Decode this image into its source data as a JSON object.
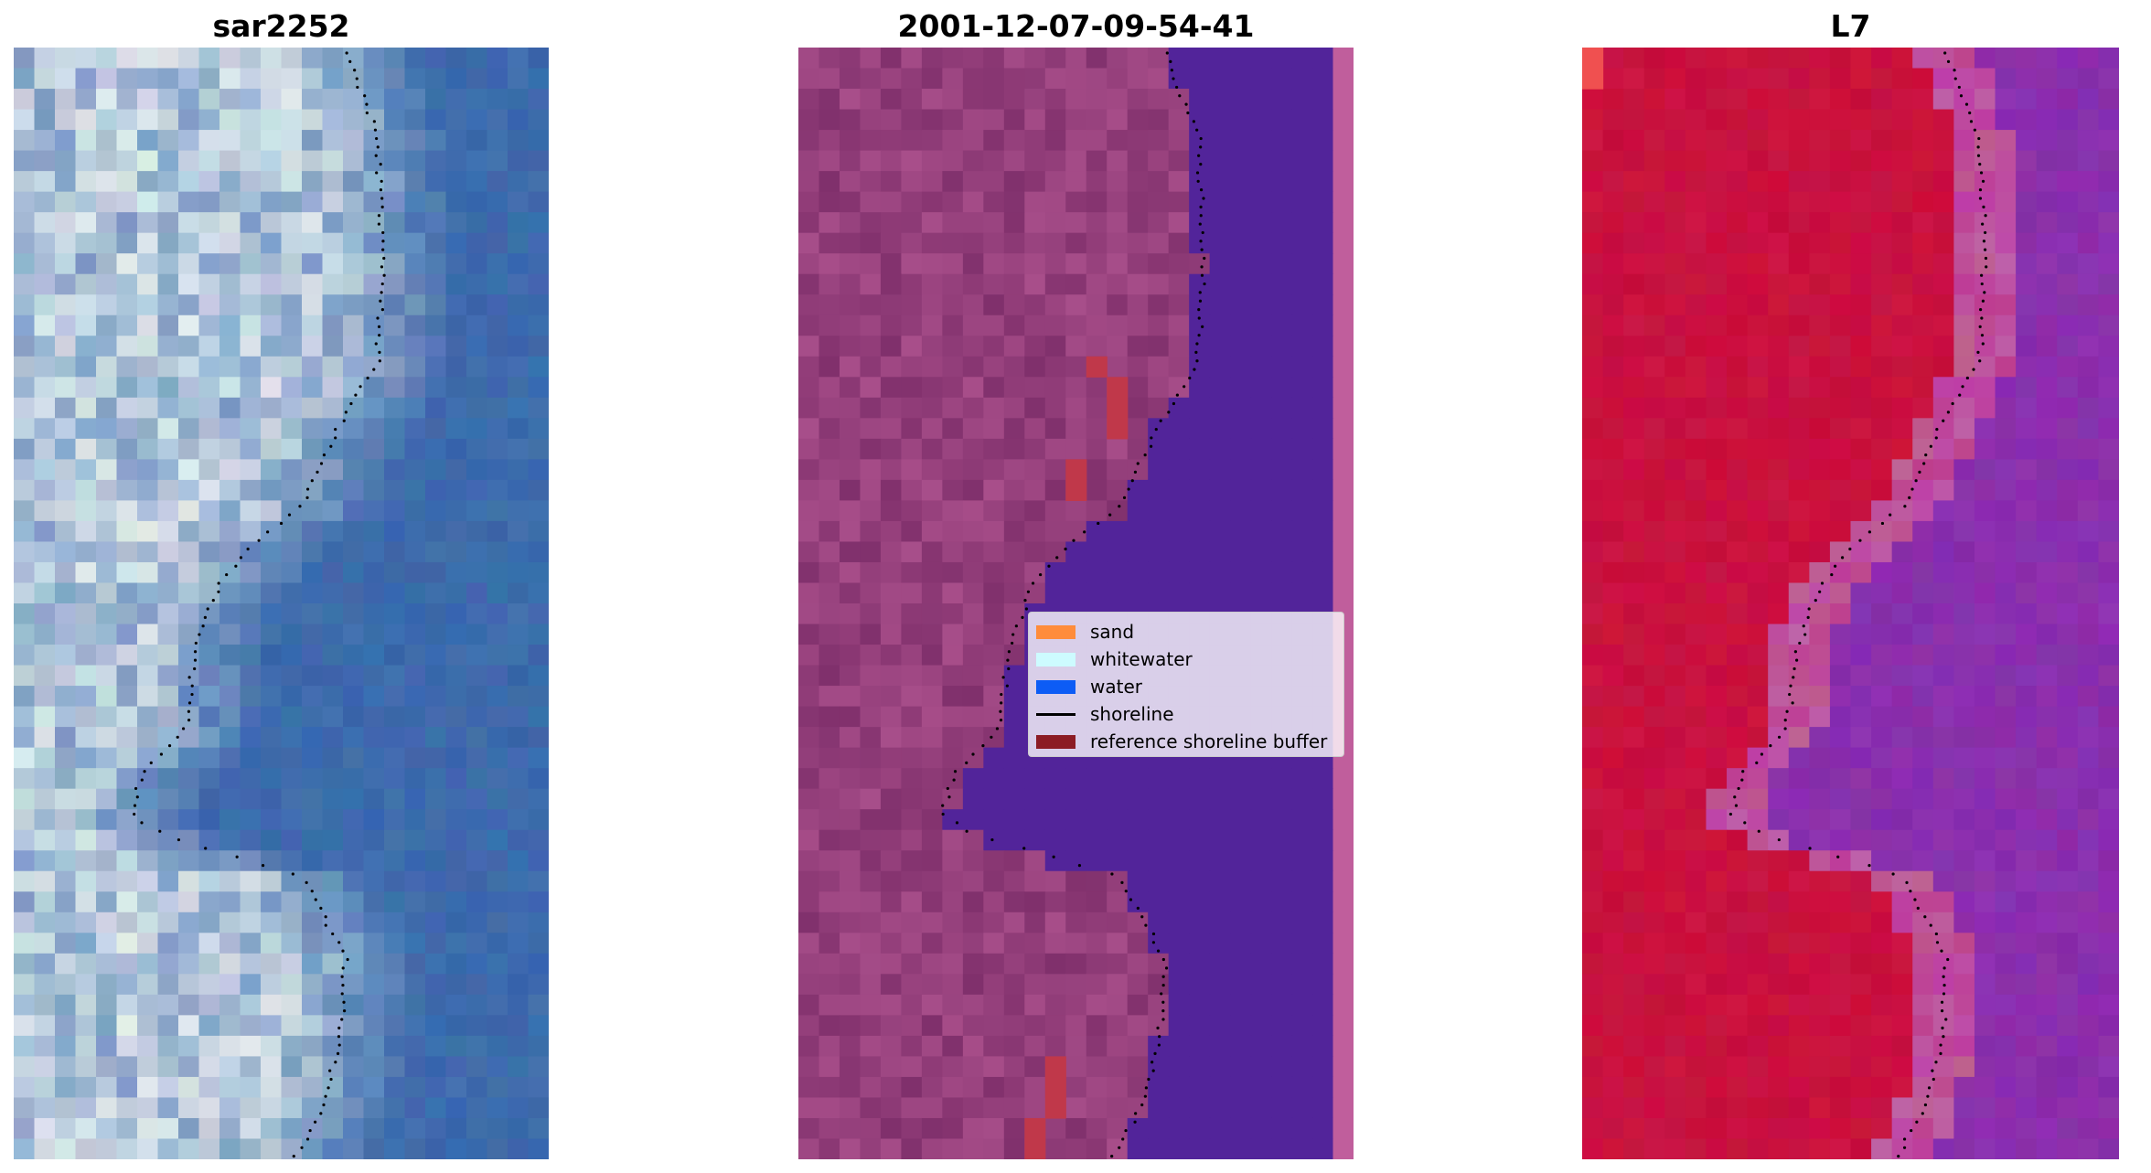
{
  "titles": {
    "left": "sar2252",
    "middle": "2001-12-07-09-54-41",
    "right": "L7"
  },
  "panels": [
    {
      "id": "left",
      "content": "rgb-satellite-image",
      "palette": "blue-white"
    },
    {
      "id": "middle",
      "content": "classified-image",
      "palette": "magenta-purple"
    },
    {
      "id": "right",
      "content": "index-image",
      "palette": "red-purple"
    }
  ],
  "legend": {
    "items": [
      {
        "label": "sand",
        "color": "#ff8c3b",
        "kind": "patch"
      },
      {
        "label": "whitewater",
        "color": "#cdfbff",
        "kind": "patch"
      },
      {
        "label": "water",
        "color": "#0d5cf5",
        "kind": "patch"
      },
      {
        "label": "shoreline",
        "color": "#000000",
        "kind": "line"
      },
      {
        "label": "reference shoreline buffer",
        "color": "#8c1c24",
        "kind": "patch"
      }
    ]
  },
  "colors": {
    "water_class": "#52249a",
    "buffer_red": "#c0384a",
    "land_magenta": "#8d3b7e",
    "sea_edge": "#c05e9c",
    "index_red": "#c5103a",
    "index_purple": "#8026a4",
    "sar_blue": "#3563a5",
    "sar_white": "#e8eef0"
  }
}
